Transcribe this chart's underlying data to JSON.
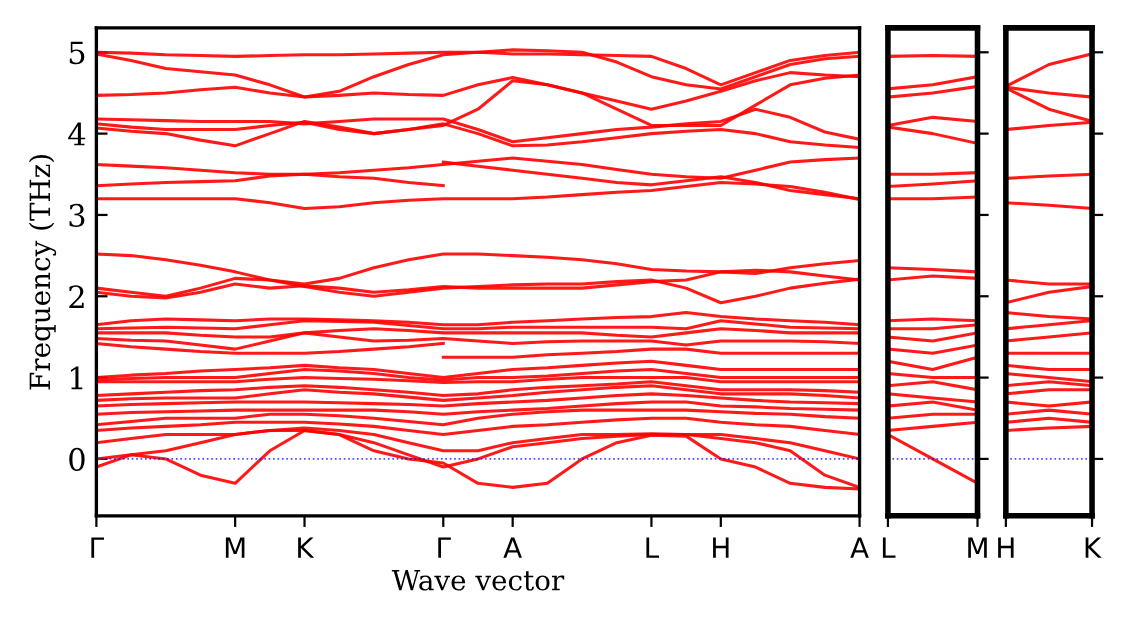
{
  "chart_data": [
    {
      "type": "line",
      "xlabel": "Wave vector",
      "ylabel": "Frequency (THz)",
      "categories": [
        "Γ",
        null,
        null,
        null,
        "M",
        null,
        "K",
        null,
        null,
        null,
        "Γ",
        null,
        "A",
        null,
        null,
        null,
        "L",
        null,
        "H",
        null,
        null,
        null,
        "A"
      ],
      "ylim": [
        -0.7,
        5.3
      ],
      "yticks": [
        0,
        1,
        2,
        3,
        4,
        5
      ],
      "grid": false,
      "marker": "none",
      "line_style": "solid",
      "ref_lines": [
        {
          "axis": "y",
          "value": 0,
          "color": "#0000ff",
          "line_style": "dotted"
        }
      ],
      "series": [
        {
          "color": "#ff0000",
          "values": [
            5.0,
            4.99,
            4.97,
            4.96,
            4.95,
            4.96,
            4.97,
            4.97,
            4.98,
            4.99,
            5.0,
            5.0,
            4.98,
            4.98,
            4.97,
            4.96,
            4.95,
            4.8,
            4.6,
            4.75,
            4.9,
            4.96,
            5.0
          ]
        },
        {
          "color": "#ff0000",
          "values": [
            4.98,
            4.9,
            4.8,
            4.76,
            4.72,
            4.6,
            4.45,
            4.52,
            4.7,
            4.85,
            4.97,
            5.0,
            5.03,
            5.02,
            5.0,
            4.88,
            4.7,
            4.6,
            4.55,
            4.7,
            4.85,
            4.92,
            4.95
          ]
        },
        {
          "color": "#ff0000",
          "values": [
            4.47,
            4.48,
            4.5,
            4.54,
            4.57,
            4.5,
            4.45,
            4.47,
            4.5,
            4.48,
            4.47,
            4.6,
            4.69,
            4.6,
            4.5,
            4.4,
            4.3,
            4.4,
            4.52,
            4.65,
            4.75,
            4.72,
            4.7
          ]
        },
        {
          "color": "#ff0000",
          "values": [
            4.18,
            4.17,
            4.16,
            4.15,
            4.15,
            4.15,
            4.12,
            4.15,
            4.18,
            4.18,
            4.18,
            4.05,
            3.9,
            3.95,
            4.0,
            4.05,
            4.08,
            4.12,
            4.15,
            4.3,
            4.2,
            4.02,
            3.93
          ]
        },
        {
          "color": "#ff0000",
          "values": [
            4.12,
            4.08,
            4.05,
            4.05,
            4.05,
            4.1,
            4.14,
            4.05,
            4.0,
            4.05,
            4.12,
            4.0,
            3.85,
            3.86,
            3.9,
            3.95,
            4.0,
            4.03,
            4.05,
            4.0,
            3.9,
            3.86,
            3.83
          ]
        },
        {
          "color": "#ff0000",
          "values": [
            4.07,
            4.03,
            4.0,
            3.92,
            3.85,
            4.0,
            4.15,
            4.08,
            4.0,
            4.05,
            4.1,
            4.3,
            4.65,
            4.6,
            4.5,
            4.3,
            4.1,
            4.1,
            4.1,
            4.35,
            4.6,
            4.68,
            4.72
          ]
        },
        {
          "color": "#ff0000",
          "values": [
            3.62,
            3.6,
            3.58,
            3.55,
            3.52,
            3.5,
            3.5,
            3.52,
            3.55,
            3.58,
            3.62,
            3.66,
            3.7,
            3.66,
            3.62,
            3.56,
            3.5,
            3.47,
            3.45,
            3.55,
            3.65,
            3.68,
            3.7
          ]
        },
        {
          "color": "#ff0000",
          "values": [
            3.36,
            3.38,
            3.4,
            3.41,
            3.42,
            3.48,
            3.5,
            3.47,
            3.45,
            3.4,
            3.36,
            null,
            null,
            null,
            null,
            null,
            null,
            null,
            null,
            null,
            null,
            null,
            null
          ]
        },
        {
          "color": "#ff0000",
          "values": [
            null,
            null,
            null,
            null,
            null,
            null,
            null,
            null,
            null,
            null,
            3.65,
            3.6,
            3.55,
            3.5,
            3.45,
            3.4,
            3.37,
            3.42,
            3.47,
            3.4,
            3.3,
            3.25,
            3.2
          ]
        },
        {
          "color": "#ff0000",
          "values": [
            3.2,
            3.2,
            3.2,
            3.2,
            3.2,
            3.15,
            3.08,
            3.1,
            3.15,
            3.18,
            3.2,
            3.2,
            3.2,
            3.22,
            3.25,
            3.28,
            3.3,
            3.35,
            3.4,
            3.38,
            3.35,
            3.28,
            3.19
          ]
        },
        {
          "color": "#ff0000",
          "values": [
            2.52,
            2.5,
            2.45,
            2.38,
            2.3,
            2.2,
            2.15,
            2.22,
            2.35,
            2.45,
            2.52,
            2.52,
            2.5,
            2.48,
            2.45,
            2.4,
            2.33,
            2.31,
            2.3,
            2.28,
            2.35,
            2.4,
            2.44
          ]
        },
        {
          "color": "#ff0000",
          "values": [
            2.1,
            2.05,
            2.0,
            2.1,
            2.22,
            2.2,
            2.12,
            2.05,
            2.0,
            2.05,
            2.1,
            2.12,
            2.14,
            2.15,
            2.15,
            2.18,
            2.2,
            2.1,
            1.92,
            2.0,
            2.1,
            2.16,
            2.21
          ]
        },
        {
          "color": "#ff0000",
          "values": [
            2.05,
            2.0,
            1.98,
            2.05,
            2.15,
            2.1,
            2.13,
            2.1,
            2.05,
            2.08,
            2.12,
            2.1,
            2.1,
            2.1,
            2.1,
            2.14,
            2.18,
            2.2,
            2.3,
            2.32,
            2.3,
            2.25,
            2.2
          ]
        },
        {
          "color": "#ff0000",
          "values": [
            1.65,
            1.7,
            1.72,
            1.71,
            1.7,
            1.72,
            1.72,
            1.71,
            1.7,
            1.68,
            1.65,
            1.65,
            1.68,
            1.7,
            1.72,
            1.74,
            1.75,
            1.8,
            1.75,
            1.72,
            1.7,
            1.68,
            1.65
          ]
        },
        {
          "color": "#ff0000",
          "values": [
            1.6,
            1.61,
            1.62,
            1.61,
            1.6,
            1.65,
            1.7,
            1.69,
            1.68,
            1.64,
            1.6,
            1.6,
            1.62,
            1.62,
            1.62,
            1.62,
            1.62,
            1.6,
            1.7,
            1.66,
            1.62,
            1.61,
            1.6
          ]
        },
        {
          "color": "#ff0000",
          "values": [
            1.55,
            1.55,
            1.55,
            1.52,
            1.5,
            1.5,
            1.55,
            1.58,
            1.6,
            1.58,
            1.55,
            1.55,
            1.55,
            1.55,
            1.55,
            1.52,
            1.5,
            1.55,
            1.6,
            1.58,
            1.55,
            1.55,
            1.55
          ]
        },
        {
          "color": "#ff0000",
          "values": [
            1.48,
            1.46,
            1.45,
            1.4,
            1.35,
            1.45,
            1.55,
            1.5,
            1.45,
            1.46,
            1.48,
            1.45,
            1.42,
            1.44,
            1.45,
            1.45,
            1.45,
            1.4,
            1.45,
            1.45,
            1.45,
            1.44,
            1.42
          ]
        },
        {
          "color": "#ff0000",
          "values": [
            1.42,
            1.38,
            1.35,
            1.32,
            1.3,
            1.3,
            1.3,
            1.32,
            1.35,
            1.38,
            1.42,
            null,
            null,
            null,
            null,
            null,
            null,
            null,
            null,
            null,
            null,
            null,
            null
          ]
        },
        {
          "color": "#ff0000",
          "values": [
            null,
            null,
            null,
            null,
            null,
            null,
            null,
            null,
            null,
            null,
            1.25,
            1.25,
            1.25,
            1.28,
            1.3,
            1.32,
            1.35,
            1.35,
            1.3,
            1.3,
            1.3,
            1.3,
            1.3
          ]
        },
        {
          "color": "#ff0000",
          "values": [
            1.0,
            1.03,
            1.05,
            1.08,
            1.1,
            1.12,
            1.15,
            1.12,
            1.1,
            1.05,
            1.0,
            1.05,
            1.1,
            1.12,
            1.15,
            1.18,
            1.2,
            1.15,
            1.1,
            1.1,
            1.1,
            1.1,
            1.1
          ]
        },
        {
          "color": "#ff0000",
          "values": [
            0.97,
            0.99,
            1.0,
            1.0,
            1.0,
            1.05,
            1.1,
            1.08,
            1.05,
            1.0,
            0.97,
            1.0,
            1.0,
            1.02,
            1.05,
            1.08,
            1.1,
            1.05,
            1.0,
            1.0,
            1.0,
            1.0,
            1.0
          ]
        },
        {
          "color": "#ff0000",
          "values": [
            0.95,
            0.95,
            0.95,
            0.95,
            0.95,
            0.98,
            1.0,
            0.99,
            0.98,
            0.96,
            0.94,
            0.95,
            0.95,
            0.98,
            1.0,
            1.0,
            1.0,
            1.0,
            0.95,
            0.95,
            0.95,
            0.95,
            0.95
          ]
        },
        {
          "color": "#ff0000",
          "values": [
            0.78,
            0.8,
            0.82,
            0.84,
            0.85,
            0.88,
            0.9,
            0.88,
            0.85,
            0.82,
            0.78,
            0.8,
            0.85,
            0.88,
            0.9,
            0.92,
            0.95,
            0.9,
            0.85,
            0.85,
            0.85,
            0.84,
            0.82
          ]
        },
        {
          "color": "#ff0000",
          "values": [
            0.72,
            0.74,
            0.75,
            0.75,
            0.75,
            0.8,
            0.85,
            0.82,
            0.8,
            0.76,
            0.72,
            0.75,
            0.78,
            0.82,
            0.85,
            0.88,
            0.9,
            0.85,
            0.8,
            0.8,
            0.8,
            0.78,
            0.75
          ]
        },
        {
          "color": "#ff0000",
          "values": [
            0.65,
            0.67,
            0.68,
            0.69,
            0.7,
            0.7,
            0.7,
            0.69,
            0.68,
            0.67,
            0.65,
            0.68,
            0.7,
            0.72,
            0.75,
            0.78,
            0.8,
            0.78,
            0.75,
            0.72,
            0.7,
            0.69,
            0.68
          ]
        },
        {
          "color": "#ff0000",
          "values": [
            0.55,
            0.57,
            0.58,
            0.59,
            0.6,
            0.6,
            0.6,
            0.6,
            0.6,
            0.58,
            0.55,
            0.58,
            0.6,
            0.62,
            0.65,
            0.68,
            0.7,
            0.7,
            0.65,
            0.64,
            0.62,
            0.61,
            0.6
          ]
        },
        {
          "color": "#ff0000",
          "values": [
            0.42,
            0.46,
            0.5,
            0.5,
            0.5,
            0.55,
            0.55,
            0.53,
            0.5,
            0.46,
            0.42,
            0.5,
            0.55,
            0.58,
            0.6,
            0.6,
            0.6,
            0.6,
            0.58,
            0.56,
            0.55,
            0.52,
            0.5
          ]
        },
        {
          "color": "#ff0000",
          "values": [
            0.35,
            0.38,
            0.4,
            0.42,
            0.45,
            0.45,
            0.45,
            0.43,
            0.4,
            0.35,
            0.3,
            0.35,
            0.4,
            0.42,
            0.45,
            0.48,
            0.5,
            0.5,
            0.45,
            0.42,
            0.4,
            0.35,
            0.3
          ]
        },
        {
          "color": "#ff0000",
          "values": [
            0.2,
            0.25,
            0.3,
            0.3,
            0.3,
            0.35,
            0.38,
            0.35,
            0.3,
            0.2,
            0.1,
            0.1,
            0.2,
            0.25,
            0.3,
            0.3,
            0.31,
            0.3,
            0.3,
            0.25,
            0.2,
            0.1,
            0.0
          ]
        },
        {
          "color": "#ff0000",
          "values": [
            0.0,
            0.05,
            0.1,
            0.2,
            0.3,
            0.35,
            0.35,
            0.3,
            0.2,
            0.05,
            -0.1,
            0.0,
            0.15,
            0.2,
            0.25,
            0.28,
            0.3,
            0.3,
            0.25,
            0.2,
            0.1,
            -0.2,
            -0.35
          ]
        },
        {
          "color": "#ff0000",
          "values": [
            -0.1,
            0.05,
            0.0,
            -0.2,
            -0.3,
            0.1,
            0.35,
            0.3,
            0.1,
            0.0,
            -0.05,
            -0.3,
            -0.35,
            -0.3,
            0.0,
            0.2,
            0.29,
            0.28,
            0.0,
            -0.1,
            -0.3,
            -0.35,
            -0.37
          ]
        }
      ]
    },
    {
      "type": "line",
      "categories": [
        "L",
        null,
        "M"
      ],
      "ylim": [
        -0.7,
        5.3
      ],
      "yticks": [
        {
          "value": 0,
          "label": null
        },
        {
          "value": 1,
          "label": null
        },
        {
          "value": 2,
          "label": null
        },
        {
          "value": 3,
          "label": null
        },
        {
          "value": 4,
          "label": null
        },
        {
          "value": 5,
          "label": null
        }
      ],
      "tick_labels": "x",
      "grid": false,
      "marker": "none",
      "line_style": "solid",
      "ref_lines": [
        {
          "axis": "y",
          "value": 0,
          "color": "#0000ff",
          "line_style": "dotted"
        }
      ],
      "series": [
        {
          "color": "#ff0000",
          "values": [
            4.95,
            4.96,
            4.95
          ]
        },
        {
          "color": "#ff0000",
          "values": [
            4.55,
            4.6,
            4.7
          ]
        },
        {
          "color": "#ff0000",
          "values": [
            4.45,
            4.5,
            4.58
          ]
        },
        {
          "color": "#ff0000",
          "values": [
            4.1,
            4.2,
            4.15
          ]
        },
        {
          "color": "#ff0000",
          "values": [
            4.08,
            4.0,
            3.88
          ]
        },
        {
          "color": "#ff0000",
          "values": [
            3.5,
            3.5,
            3.52
          ]
        },
        {
          "color": "#ff0000",
          "values": [
            3.35,
            3.38,
            3.42
          ]
        },
        {
          "color": "#ff0000",
          "values": [
            3.2,
            3.2,
            3.22
          ]
        },
        {
          "color": "#ff0000",
          "values": [
            2.35,
            2.33,
            2.3
          ]
        },
        {
          "color": "#ff0000",
          "values": [
            2.2,
            2.25,
            2.22
          ]
        },
        {
          "color": "#ff0000",
          "values": [
            1.7,
            1.72,
            1.7
          ]
        },
        {
          "color": "#ff0000",
          "values": [
            1.6,
            1.6,
            1.65
          ]
        },
        {
          "color": "#ff0000",
          "values": [
            1.5,
            1.45,
            1.55
          ]
        },
        {
          "color": "#ff0000",
          "values": [
            1.35,
            1.3,
            1.4
          ]
        },
        {
          "color": "#ff0000",
          "values": [
            1.2,
            1.1,
            1.25
          ]
        },
        {
          "color": "#ff0000",
          "values": [
            1.05,
            1.0,
            1.0
          ]
        },
        {
          "color": "#ff0000",
          "values": [
            0.9,
            0.95,
            0.85
          ]
        },
        {
          "color": "#ff0000",
          "values": [
            0.8,
            0.75,
            0.7
          ]
        },
        {
          "color": "#ff0000",
          "values": [
            0.65,
            0.7,
            0.6
          ]
        },
        {
          "color": "#ff0000",
          "values": [
            0.5,
            0.55,
            0.55
          ]
        },
        {
          "color": "#ff0000",
          "values": [
            0.35,
            0.4,
            0.45
          ]
        },
        {
          "color": "#ff0000",
          "values": [
            0.3,
            0.0,
            -0.3
          ]
        }
      ]
    },
    {
      "type": "line",
      "categories": [
        "H",
        null,
        "K"
      ],
      "ylim": [
        -0.7,
        5.3
      ],
      "yticks": [
        {
          "value": 0,
          "label": null
        },
        {
          "value": 1,
          "label": null
        },
        {
          "value": 2,
          "label": null
        },
        {
          "value": 3,
          "label": null
        },
        {
          "value": 4,
          "label": null
        },
        {
          "value": 5,
          "label": null
        }
      ],
      "tick_labels": "x",
      "grid": false,
      "marker": "none",
      "line_style": "solid",
      "ref_lines": [
        {
          "axis": "y",
          "value": 0,
          "color": "#0000ff",
          "line_style": "dotted"
        }
      ],
      "series": [
        {
          "color": "#ff0000",
          "values": [
            4.58,
            4.85,
            4.98
          ]
        },
        {
          "color": "#ff0000",
          "values": [
            4.57,
            4.5,
            4.45
          ]
        },
        {
          "color": "#ff0000",
          "values": [
            4.56,
            4.3,
            4.15
          ]
        },
        {
          "color": "#ff0000",
          "values": [
            4.05,
            4.1,
            4.14
          ]
        },
        {
          "color": "#ff0000",
          "values": [
            3.45,
            3.48,
            3.5
          ]
        },
        {
          "color": "#ff0000",
          "values": [
            3.15,
            3.12,
            3.08
          ]
        },
        {
          "color": "#ff0000",
          "values": [
            2.2,
            2.15,
            2.15
          ]
        },
        {
          "color": "#ff0000",
          "values": [
            1.92,
            2.05,
            2.12
          ]
        },
        {
          "color": "#ff0000",
          "values": [
            1.8,
            1.75,
            1.72
          ]
        },
        {
          "color": "#ff0000",
          "values": [
            1.6,
            1.65,
            1.7
          ]
        },
        {
          "color": "#ff0000",
          "values": [
            1.45,
            1.5,
            1.55
          ]
        },
        {
          "color": "#ff0000",
          "values": [
            1.3,
            1.3,
            1.3
          ]
        },
        {
          "color": "#ff0000",
          "values": [
            1.15,
            1.1,
            1.1
          ]
        },
        {
          "color": "#ff0000",
          "values": [
            1.05,
            1.0,
            0.95
          ]
        },
        {
          "color": "#ff0000",
          "values": [
            0.9,
            0.95,
            0.9
          ]
        },
        {
          "color": "#ff0000",
          "values": [
            0.8,
            0.85,
            0.85
          ]
        },
        {
          "color": "#ff0000",
          "values": [
            0.7,
            0.65,
            0.7
          ]
        },
        {
          "color": "#ff0000",
          "values": [
            0.55,
            0.6,
            0.55
          ]
        },
        {
          "color": "#ff0000",
          "values": [
            0.45,
            0.5,
            0.45
          ]
        },
        {
          "color": "#ff0000",
          "values": [
            0.35,
            0.38,
            0.4
          ]
        }
      ]
    }
  ]
}
